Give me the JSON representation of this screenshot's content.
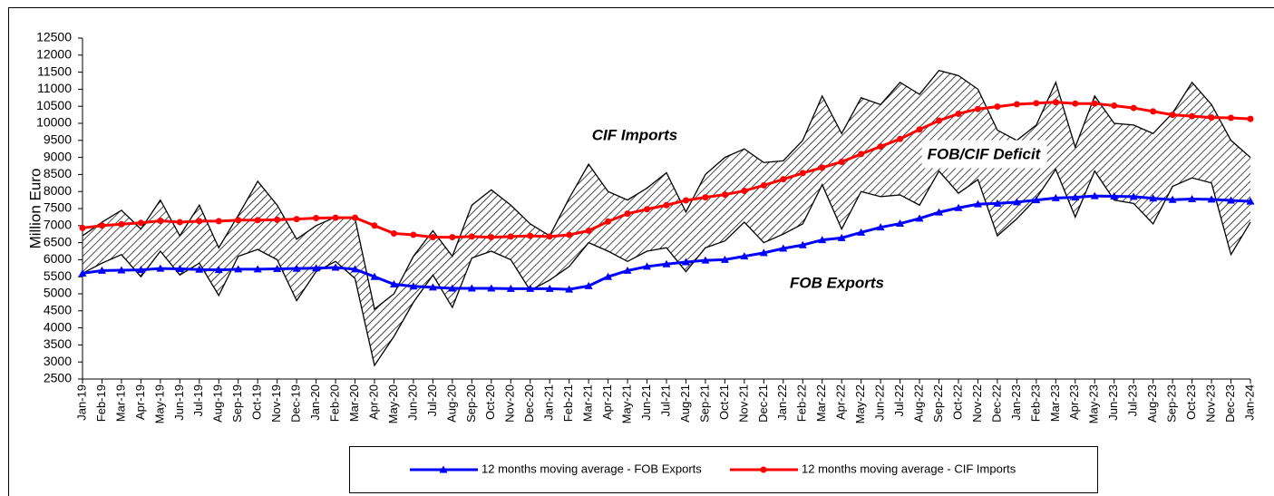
{
  "chart_data": {
    "type": "line",
    "y_label": "Million Euro",
    "annotations": [
      "CIF Imports",
      "FOB Exports",
      "FOB/CIF Deficit"
    ],
    "categories": [
      "Jan-19",
      "Feb-19",
      "Mar-19",
      "Apr-19",
      "May-19",
      "Jun-19",
      "Jul-19",
      "Aug-19",
      "Sep-19",
      "Oct-19",
      "Nov-19",
      "Dec-19",
      "Jan-20",
      "Feb-20",
      "Mar-20",
      "Apr-20",
      "May-20",
      "Jun-20",
      "Jul-20",
      "Aug-20",
      "Sep-20",
      "Oct-20",
      "Nov-20",
      "Dec-20",
      "Jan-21",
      "Feb-21",
      "Mar-21",
      "Apr-21",
      "May-21",
      "Jun-21",
      "Jul-21",
      "Aug-21",
      "Sep-21",
      "Oct-21",
      "Nov-21",
      "Dec-21",
      "Jan-22",
      "Feb-22",
      "Mar-22",
      "Apr-22",
      "May-22",
      "Jun-22",
      "Jul-22",
      "Aug-22",
      "Sep-22",
      "Oct-22",
      "Nov-22",
      "Dec-22",
      "Jan-23",
      "Feb-23",
      "Mar-23",
      "Apr-23",
      "May-23",
      "Jun-23",
      "Jul-23",
      "Aug-23",
      "Sep-23",
      "Oct-23",
      "Nov-23",
      "Dec-23",
      "Jan-24"
    ],
    "series": [
      {
        "name": "12 months moving average - FOB Exports",
        "color": "#0000ff",
        "marker": "triangle",
        "values": [
          5600,
          5680,
          5690,
          5700,
          5740,
          5730,
          5710,
          5700,
          5720,
          5720,
          5730,
          5740,
          5750,
          5770,
          5720,
          5500,
          5280,
          5220,
          5190,
          5160,
          5160,
          5160,
          5150,
          5150,
          5150,
          5130,
          5230,
          5500,
          5680,
          5800,
          5870,
          5930,
          5980,
          6000,
          6100,
          6200,
          6330,
          6430,
          6580,
          6640,
          6800,
          6950,
          7060,
          7210,
          7390,
          7520,
          7630,
          7650,
          7690,
          7750,
          7810,
          7830,
          7870,
          7860,
          7850,
          7800,
          7760,
          7780,
          7770,
          7740,
          7710
        ]
      },
      {
        "name": "12 months moving average - CIF Imports",
        "color": "#ff0000",
        "marker": "circle",
        "values": [
          6930,
          7000,
          7040,
          7080,
          7140,
          7100,
          7130,
          7130,
          7160,
          7160,
          7170,
          7190,
          7220,
          7230,
          7230,
          7000,
          6770,
          6730,
          6660,
          6660,
          6680,
          6660,
          6680,
          6700,
          6680,
          6730,
          6850,
          7120,
          7350,
          7480,
          7600,
          7740,
          7830,
          7910,
          8020,
          8180,
          8360,
          8540,
          8700,
          8870,
          9100,
          9320,
          9540,
          9820,
          10080,
          10280,
          10420,
          10490,
          10560,
          10590,
          10620,
          10580,
          10580,
          10520,
          10450,
          10350,
          10250,
          10210,
          10170,
          10160,
          10130
        ]
      },
      {
        "color": "#000000",
        "values": [
          6700,
          7100,
          7450,
          6900,
          7750,
          6700,
          7600,
          6350,
          7300,
          8300,
          7600,
          6600,
          7000,
          7250,
          7200,
          4550,
          5000,
          6100,
          6850,
          6100,
          7600,
          8050,
          7600,
          7050,
          6700,
          7800,
          8800,
          8000,
          7750,
          8100,
          8550,
          7400,
          8500,
          9000,
          9250,
          8850,
          8900,
          9500,
          10800,
          9700,
          10750,
          10550,
          11200,
          10850,
          11550,
          11400,
          11000,
          9800,
          9500,
          9950,
          11200,
          9300,
          10800,
          10000,
          9950,
          9700,
          10300,
          11200,
          10550,
          9500,
          9000
        ]
      },
      {
        "color": "#000000",
        "values": [
          5600,
          5900,
          6150,
          5500,
          6250,
          5550,
          5900,
          4950,
          6100,
          6300,
          6000,
          4800,
          5650,
          5950,
          5450,
          2900,
          3750,
          4750,
          5550,
          4600,
          6050,
          6250,
          6000,
          5100,
          5400,
          5800,
          6500,
          6250,
          5950,
          6250,
          6350,
          5650,
          6350,
          6550,
          7100,
          6500,
          6750,
          7050,
          8200,
          6900,
          8000,
          7850,
          7900,
          7600,
          8600,
          7950,
          8350,
          6700,
          7200,
          7800,
          8650,
          7250,
          8600,
          7750,
          7650,
          7050,
          8150,
          8400,
          8250,
          6150,
          7100
        ]
      }
    ],
    "fill_between": [
      2,
      3
    ],
    "hatch": true,
    "ylim": [
      2500,
      12500
    ],
    "yticks": [
      2500,
      3000,
      3500,
      4000,
      4500,
      5000,
      5500,
      6000,
      6500,
      7000,
      7500,
      8000,
      8500,
      9000,
      9500,
      10000,
      10500,
      11000,
      11500,
      12000,
      12500
    ],
    "grid": false,
    "legend_position": "bottom"
  }
}
